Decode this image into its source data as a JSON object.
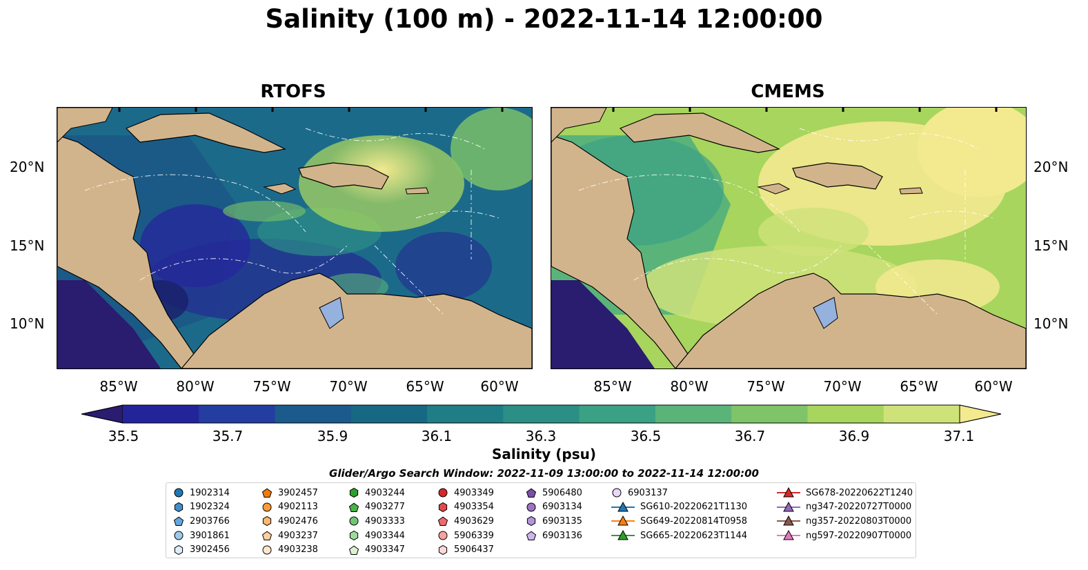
{
  "title": "Salinity (100 m) - 2022-11-14 12:00:00",
  "panels": [
    {
      "title": "RTOFS"
    },
    {
      "title": "CMEMS"
    }
  ],
  "lat_labels": [
    "20°N",
    "15°N",
    "10°N"
  ],
  "lon_labels": [
    "85°W",
    "80°W",
    "75°W",
    "70°W",
    "65°W",
    "60°W"
  ],
  "colorbar": {
    "label": "Salinity (psu)",
    "ticks": [
      "35.5",
      "35.7",
      "35.9",
      "36.1",
      "36.3",
      "36.5",
      "36.7",
      "36.9",
      "37.1"
    ],
    "colors": [
      "#2a1c6e",
      "#24249a",
      "#233da1",
      "#1a5a8c",
      "#176882",
      "#1f7d86",
      "#2c8f86",
      "#3aa184",
      "#5ab47a",
      "#7fc468",
      "#a7d55d",
      "#cfe27a",
      "#f3e98f"
    ]
  },
  "legend": {
    "title": "Glider/Argo Search Window: 2022-11-09 13:00:00 to 2022-11-14 12:00:00",
    "columns": [
      [
        {
          "label": "1902314",
          "shape": "circle",
          "color": "#1f77b4"
        },
        {
          "label": "1902324",
          "shape": "hexagon",
          "color": "#3f8fd0"
        },
        {
          "label": "2903766",
          "shape": "pentagon",
          "color": "#63a6e0"
        },
        {
          "label": "3901861",
          "shape": "circle",
          "color": "#9ecae9"
        },
        {
          "label": "3902456",
          "shape": "hexagon",
          "color": "#dceefb"
        }
      ],
      [
        {
          "label": "3902457",
          "shape": "pentagon",
          "color": "#ef7c0e"
        },
        {
          "label": "4902113",
          "shape": "circle",
          "color": "#fd9a3b"
        },
        {
          "label": "4902476",
          "shape": "hexagon",
          "color": "#fdb870"
        },
        {
          "label": "4903237",
          "shape": "pentagon",
          "color": "#fdcf9e"
        },
        {
          "label": "4903238",
          "shape": "circle",
          "color": "#fee6cc"
        }
      ],
      [
        {
          "label": "4903244",
          "shape": "hexagon",
          "color": "#2ca02c"
        },
        {
          "label": "4903277",
          "shape": "pentagon",
          "color": "#45b545"
        },
        {
          "label": "4903333",
          "shape": "circle",
          "color": "#74c476"
        },
        {
          "label": "4903344",
          "shape": "hexagon",
          "color": "#a1d99b"
        },
        {
          "label": "4903347",
          "shape": "pentagon",
          "color": "#d9f2d0"
        }
      ],
      [
        {
          "label": "4903349",
          "shape": "circle",
          "color": "#d62728"
        },
        {
          "label": "4903354",
          "shape": "hexagon",
          "color": "#e3484a"
        },
        {
          "label": "4903629",
          "shape": "pentagon",
          "color": "#ee6a6c"
        },
        {
          "label": "5906339",
          "shape": "circle",
          "color": "#f7a1a1"
        },
        {
          "label": "5906437",
          "shape": "hexagon",
          "color": "#fdd8d7"
        }
      ],
      [
        {
          "label": "5906480",
          "shape": "pentagon",
          "color": "#7b4fa8"
        },
        {
          "label": "6903134",
          "shape": "circle",
          "color": "#9c73c2"
        },
        {
          "label": "6903135",
          "shape": "hexagon",
          "color": "#b495d8"
        },
        {
          "label": "6903136",
          "shape": "pentagon",
          "color": "#cdb6ea"
        }
      ],
      [
        {
          "label": "6903137",
          "shape": "circle",
          "color": "#e7daf7"
        },
        {
          "label": "SG610-20220621T1130",
          "shape": "triangle",
          "color": "#1f77b4"
        },
        {
          "label": "SG649-20220814T0958",
          "shape": "triangle",
          "color": "#ff7f0e"
        },
        {
          "label": "SG665-20220623T1144",
          "shape": "triangle",
          "color": "#2ca02c"
        }
      ],
      [
        {
          "label": "SG678-20220622T1240",
          "shape": "triangle",
          "color": "#d62728"
        },
        {
          "label": "ng347-20220727T0000",
          "shape": "triangle",
          "color": "#9467bd"
        },
        {
          "label": "ng357-20220803T0000",
          "shape": "triangle",
          "color": "#8c564b"
        },
        {
          "label": "ng597-20220907T0000",
          "shape": "triangle",
          "color": "#e377c2"
        }
      ]
    ]
  }
}
